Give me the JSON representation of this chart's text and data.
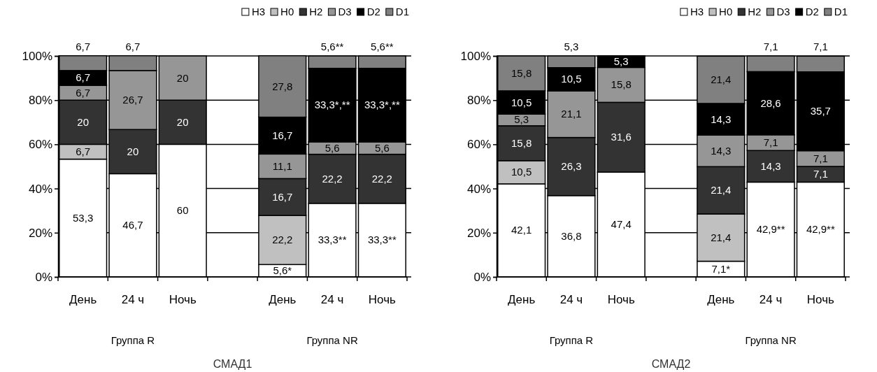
{
  "chart_data": [
    {
      "type": "bar",
      "stacked": true,
      "title": "СМАД1",
      "categories": [
        "День",
        "24 ч",
        "Ночь",
        null,
        "День",
        "24 ч",
        "Ночь"
      ],
      "series": [
        {
          "name": "H3",
          "color": "#ffffff",
          "values": [
            53.3,
            46.7,
            60,
            null,
            5.6,
            33.3,
            33.3
          ],
          "value_labels": [
            "53,3",
            "46,7",
            "60",
            null,
            "5,6*",
            "33,3**",
            "33,3**"
          ]
        },
        {
          "name": "H0",
          "color": "#c0c0c0",
          "values": [
            6.7,
            null,
            null,
            null,
            22.2,
            null,
            null
          ],
          "value_labels": [
            "6,7",
            null,
            null,
            null,
            "22,2",
            null,
            null
          ]
        },
        {
          "name": "H2",
          "color": "#333333",
          "values": [
            20,
            20,
            20,
            null,
            16.7,
            22.2,
            22.2
          ],
          "value_labels": [
            "20",
            "20",
            "20",
            null,
            "16,7",
            "22,2",
            "22,2"
          ]
        },
        {
          "name": "D3",
          "color": "#969696",
          "values": [
            6.7,
            26.7,
            20,
            null,
            11.1,
            5.6,
            5.6
          ],
          "value_labels": [
            "6,7",
            "26,7",
            "20",
            null,
            "11,1",
            "5,6",
            "5,6"
          ]
        },
        {
          "name": "D2",
          "color": "#000000",
          "values": [
            6.7,
            null,
            null,
            null,
            16.7,
            33.3,
            33.3
          ],
          "value_labels": [
            "6,7",
            null,
            null,
            null,
            "16,7",
            "33,3*,**",
            "33,3*,**"
          ]
        },
        {
          "name": "D1",
          "color": "#808080",
          "values": [
            6.7,
            6.7,
            null,
            null,
            27.8,
            5.6,
            5.6
          ],
          "value_labels": [
            "6,7",
            "6,7",
            null,
            null,
            "27,8",
            "5,6**",
            "5,6**"
          ]
        }
      ],
      "ylim": [
        0,
        100
      ],
      "yticks": [
        {
          "value": 0,
          "label": "0%"
        },
        {
          "value": 20,
          "label": "20%"
        },
        {
          "value": 40,
          "label": "40%"
        },
        {
          "value": 60,
          "label": "60%"
        },
        {
          "value": 80,
          "label": "80%"
        },
        {
          "value": 100,
          "label": "100%"
        }
      ],
      "grid": "y",
      "legend": "top right",
      "annotations": [
        "Группа R",
        "Группа NR"
      ]
    },
    {
      "type": "bar",
      "stacked": true,
      "title": "СМАД2",
      "categories": [
        "День",
        "24 ч",
        "Ночь",
        null,
        "День",
        "24 ч",
        "Ночь"
      ],
      "series": [
        {
          "name": "H3",
          "color": "#ffffff",
          "values": [
            42.1,
            36.8,
            47.4,
            null,
            7.1,
            42.9,
            42.9
          ],
          "value_labels": [
            "42,1",
            "36,8",
            "47,4",
            null,
            "7,1*",
            "42,9**",
            "42,9**"
          ]
        },
        {
          "name": "H0",
          "color": "#c0c0c0",
          "values": [
            10.5,
            null,
            null,
            null,
            21.4,
            null,
            null
          ],
          "value_labels": [
            "10,5",
            null,
            null,
            null,
            "21,4",
            null,
            null
          ]
        },
        {
          "name": "H2",
          "color": "#333333",
          "values": [
            15.8,
            26.3,
            31.6,
            null,
            21.4,
            14.3,
            7.1
          ],
          "value_labels": [
            "15,8",
            "26,3",
            "31,6",
            null,
            "21,4",
            "14,3",
            "7,1"
          ]
        },
        {
          "name": "D3",
          "color": "#969696",
          "values": [
            5.3,
            21.1,
            15.8,
            null,
            14.3,
            7.1,
            7.1
          ],
          "value_labels": [
            "5,3",
            "21,1",
            "15,8",
            null,
            "14,3",
            "7,1",
            "7,1"
          ]
        },
        {
          "name": "D2",
          "color": "#000000",
          "values": [
            10.5,
            10.5,
            5.3,
            null,
            14.3,
            28.6,
            35.7
          ],
          "value_labels": [
            "10,5",
            "10,5",
            "5,3",
            null,
            "14,3",
            "28,6",
            "35,7"
          ]
        },
        {
          "name": "D1",
          "color": "#808080",
          "values": [
            15.8,
            5.3,
            null,
            null,
            21.4,
            7.1,
            7.1
          ],
          "value_labels": [
            "15,8",
            "5,3",
            null,
            null,
            "21,4",
            "7,1",
            "7,1"
          ]
        }
      ],
      "ylim": [
        0,
        100
      ],
      "yticks": [
        {
          "value": 0,
          "label": "0%"
        },
        {
          "value": 20,
          "label": "20%"
        },
        {
          "value": 40,
          "label": "40%"
        },
        {
          "value": 60,
          "label": "60%"
        },
        {
          "value": 80,
          "label": "80%"
        },
        {
          "value": 100,
          "label": "100%"
        }
      ],
      "grid": "y",
      "legend": "top right",
      "annotations": [
        "Группа R",
        "Группа NR"
      ]
    }
  ]
}
